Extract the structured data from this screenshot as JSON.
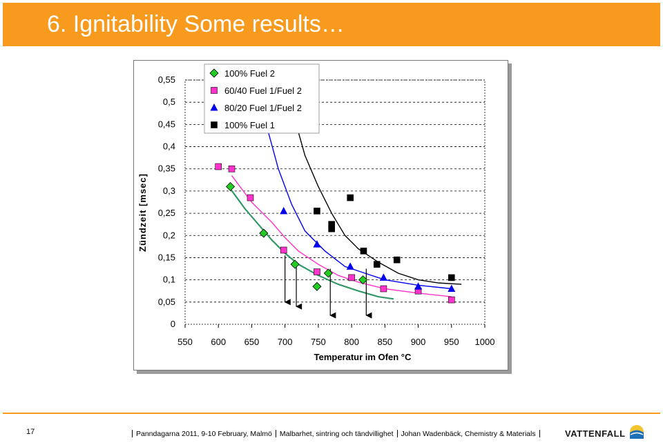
{
  "header": {
    "title": "6. Ignitability  Some results…",
    "bar_color": "#f79a1e"
  },
  "chart_data": {
    "type": "scatter",
    "xlabel": "Temperatur im Ofen °C",
    "ylabel": "Zündzeit [msec]",
    "xlim": [
      550,
      1000
    ],
    "ylim": [
      0,
      0.55
    ],
    "x_ticks": [
      "550",
      "600",
      "650",
      "700",
      "750",
      "800",
      "850",
      "900",
      "950",
      "1000"
    ],
    "y_ticks": [
      "0",
      "0,05",
      "0,1",
      "0,15",
      "0,2",
      "0,25",
      "0,3",
      "0,35",
      "0,4",
      "0,45",
      "0,5",
      "0,55"
    ],
    "grid": "horizontal dashed",
    "legend_position": "top-left",
    "series": [
      {
        "name": "100% Fuel 2",
        "marker": "diamond",
        "color": "#22cc22",
        "points": [
          [
            618,
            0.31
          ],
          [
            668,
            0.205
          ],
          [
            715,
            0.135
          ],
          [
            748,
            0.085
          ],
          [
            765,
            0.115
          ],
          [
            817,
            0.1
          ]
        ],
        "trend": [
          [
            618,
            0.305
          ],
          [
            640,
            0.26
          ],
          [
            660,
            0.225
          ],
          [
            680,
            0.19
          ],
          [
            700,
            0.16
          ],
          [
            720,
            0.135
          ],
          [
            750,
            0.11
          ],
          [
            780,
            0.09
          ],
          [
            810,
            0.075
          ],
          [
            840,
            0.062
          ],
          [
            863,
            0.057
          ]
        ]
      },
      {
        "name": "60/40 Fuel 1/Fuel 2",
        "marker": "square",
        "color": "#ff33cc",
        "points": [
          [
            600,
            0.355
          ],
          [
            620,
            0.35
          ],
          [
            648,
            0.285
          ],
          [
            698,
            0.167
          ],
          [
            748,
            0.118
          ],
          [
            800,
            0.105
          ],
          [
            848,
            0.08
          ],
          [
            900,
            0.075
          ],
          [
            950,
            0.055
          ]
        ],
        "trend": [
          [
            620,
            0.335
          ],
          [
            650,
            0.275
          ],
          [
            680,
            0.23
          ],
          [
            700,
            0.195
          ],
          [
            720,
            0.165
          ],
          [
            750,
            0.135
          ],
          [
            780,
            0.11
          ],
          [
            810,
            0.095
          ],
          [
            850,
            0.08
          ],
          [
            900,
            0.07
          ],
          [
            950,
            0.062
          ]
        ]
      },
      {
        "name": "80/20 Fuel 1/Fuel 2",
        "marker": "triangle",
        "color": "#0000ee",
        "points": [
          [
            698,
            0.255
          ],
          [
            748,
            0.18
          ],
          [
            798,
            0.13
          ],
          [
            848,
            0.105
          ],
          [
            900,
            0.085
          ],
          [
            950,
            0.08
          ]
        ],
        "trend": [
          [
            670,
            0.46
          ],
          [
            690,
            0.35
          ],
          [
            710,
            0.27
          ],
          [
            730,
            0.21
          ],
          [
            760,
            0.165
          ],
          [
            790,
            0.13
          ],
          [
            820,
            0.115
          ],
          [
            850,
            0.1
          ],
          [
            900,
            0.088
          ],
          [
            950,
            0.08
          ]
        ]
      },
      {
        "name": "100% Fuel 1",
        "marker": "square",
        "color": "#000000",
        "points": [
          [
            748,
            0.255
          ],
          [
            770,
            0.225
          ],
          [
            770,
            0.215
          ],
          [
            798,
            0.285
          ],
          [
            818,
            0.165
          ],
          [
            838,
            0.135
          ],
          [
            868,
            0.145
          ],
          [
            950,
            0.105
          ]
        ],
        "trend": [
          [
            715,
            0.46
          ],
          [
            730,
            0.38
          ],
          [
            750,
            0.31
          ],
          [
            770,
            0.25
          ],
          [
            790,
            0.2
          ],
          [
            810,
            0.17
          ],
          [
            840,
            0.14
          ],
          [
            870,
            0.115
          ],
          [
            900,
            0.1
          ],
          [
            930,
            0.093
          ],
          [
            965,
            0.09
          ]
        ]
      }
    ],
    "arrows": [
      {
        "x": 700,
        "from": 0.155,
        "to": 0.05
      },
      {
        "x": 717,
        "from": 0.135,
        "to": 0.04
      },
      {
        "x": 768,
        "from": 0.125,
        "to": 0.02
      },
      {
        "x": 822,
        "from": 0.125,
        "to": 0.02
      }
    ]
  },
  "footer": {
    "page_number": "17",
    "items": [
      "Panndagarna 2011, 9-10 February, Malmö",
      "Malbarhet, sintring och tändvillighet",
      "Johan Wadenbäck, Chemistry & Materials"
    ],
    "logo_text": "VATTENFALL",
    "rule_color": "#f79a1e"
  }
}
